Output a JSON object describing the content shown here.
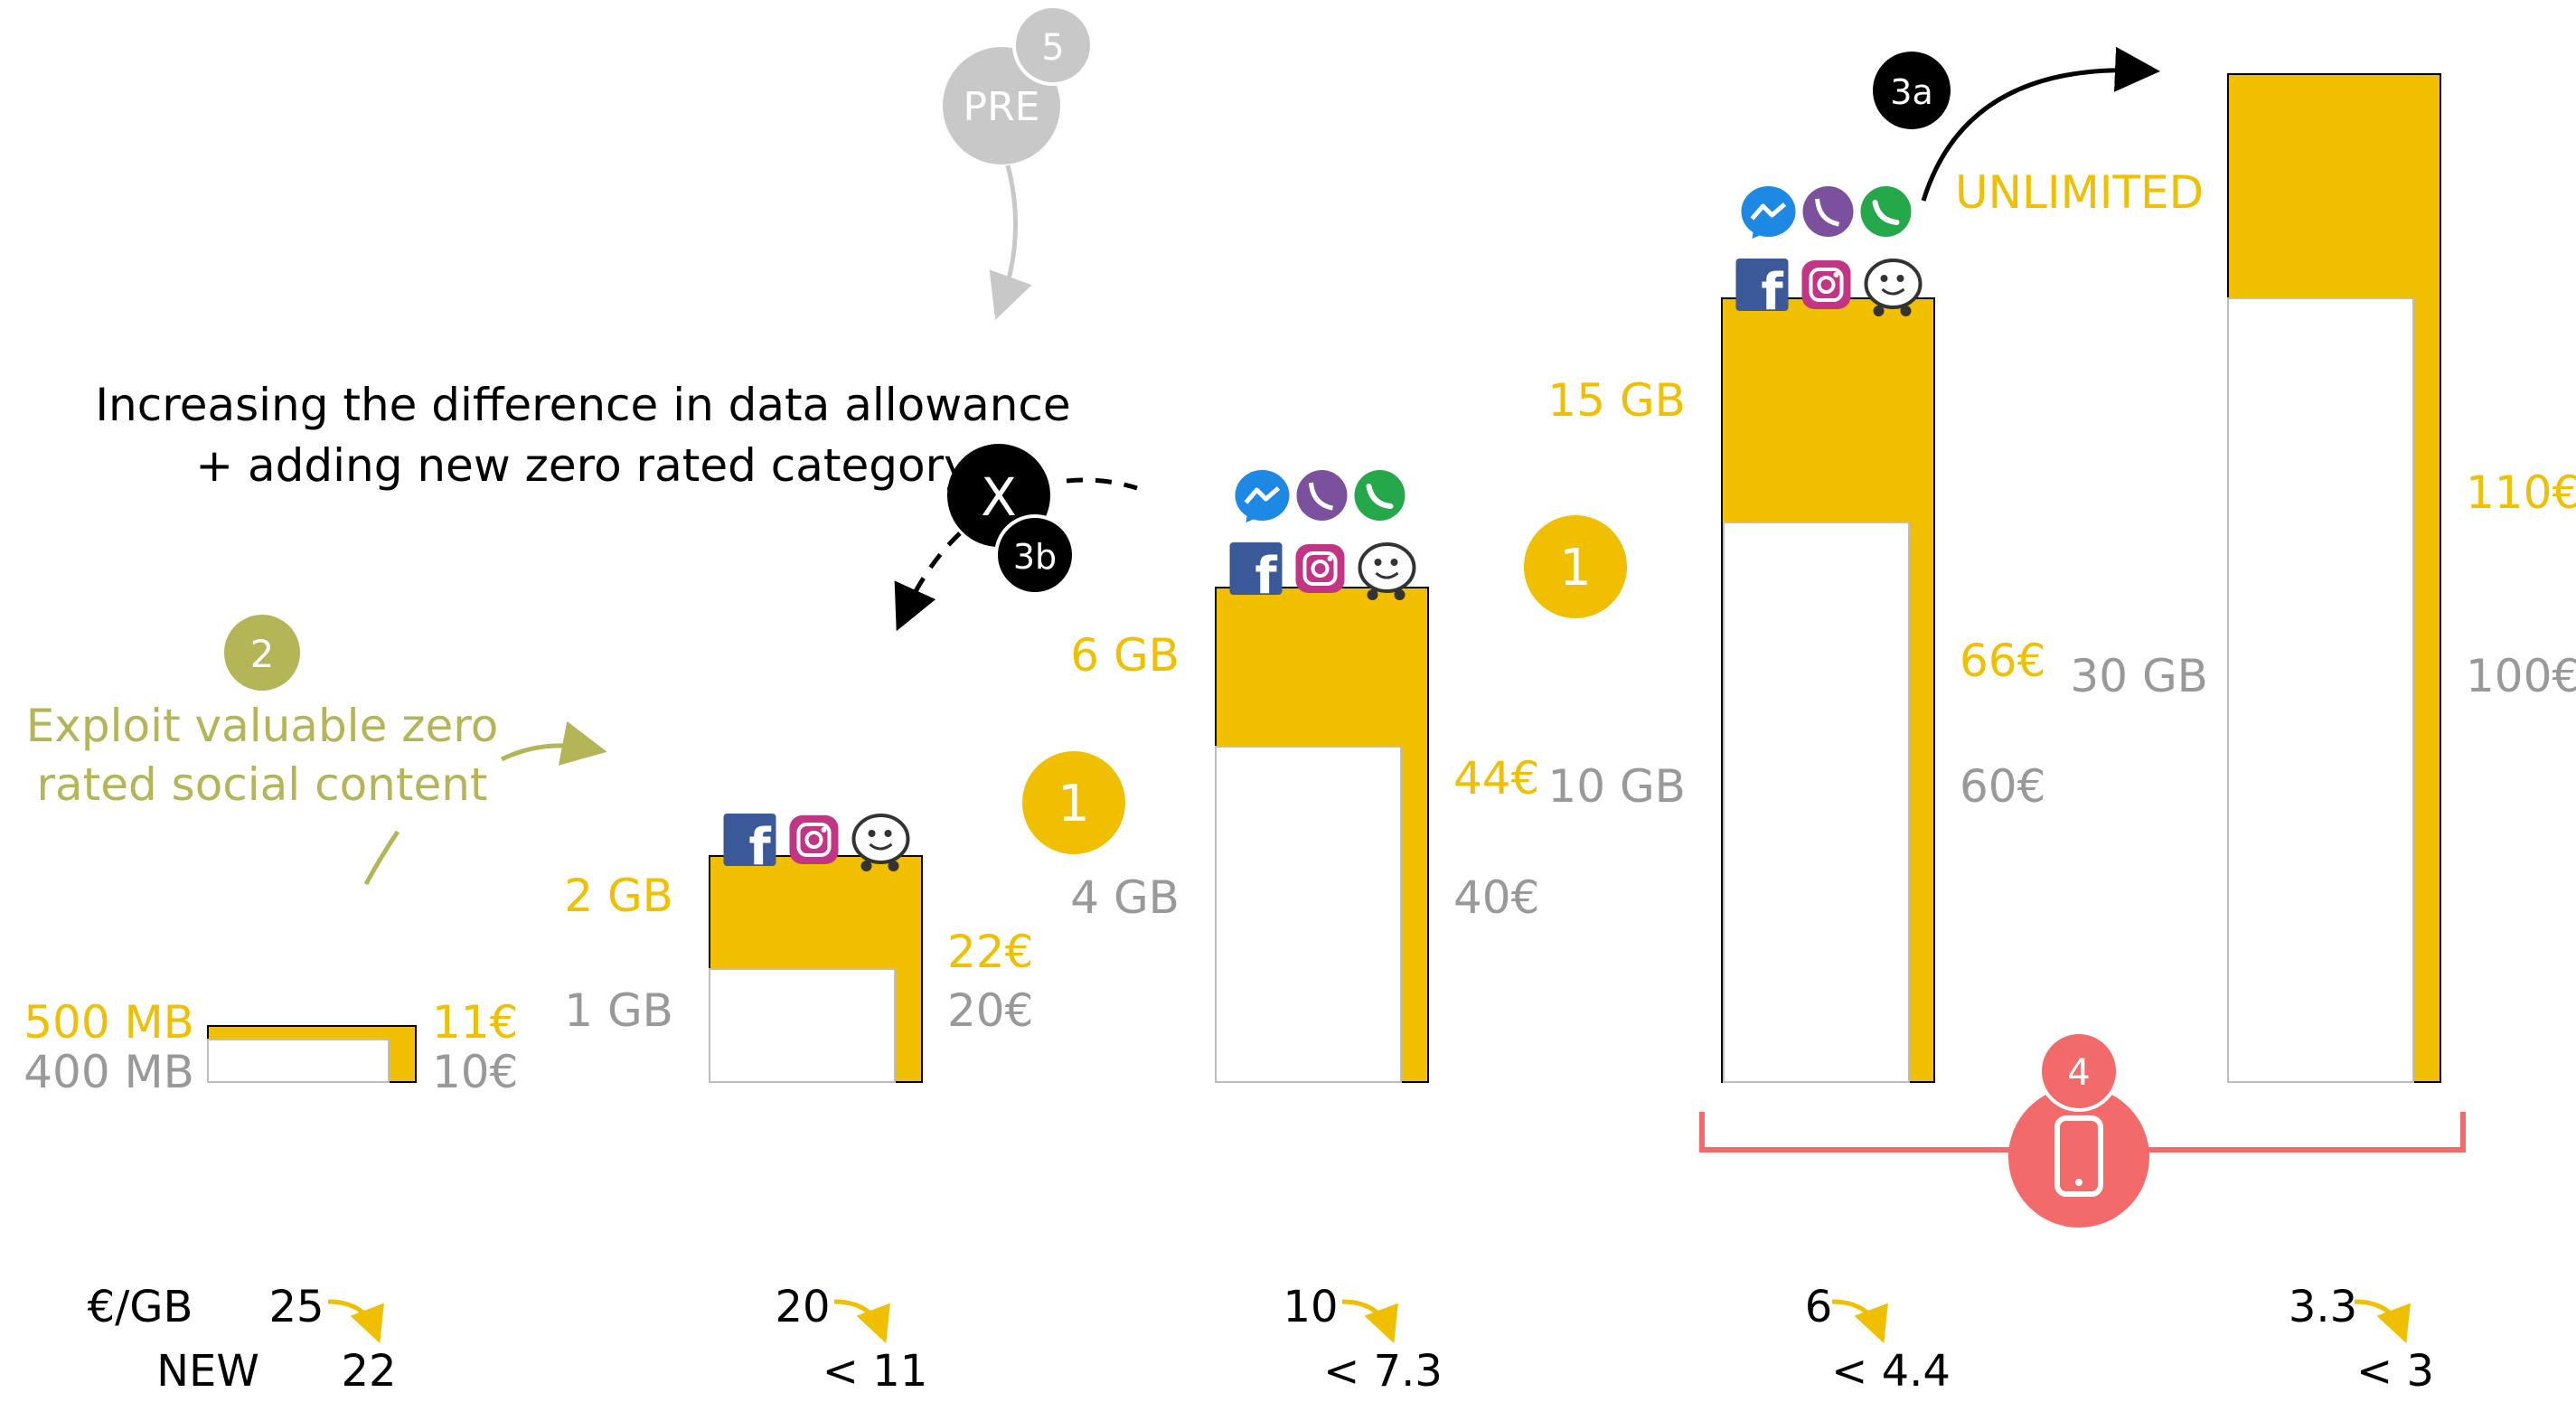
{
  "colors": {
    "yellow": "#EFBF00",
    "gray": "#999999",
    "olive": "#B3B556",
    "red": "#F26A6A",
    "black": "#000000",
    "light_gray": "#C8C8C8",
    "facebook": "#3B5998",
    "messenger": "#1E88E5",
    "viber": "#7B519D",
    "whatsapp": "#25A84A",
    "instagram": "#C13584"
  },
  "headline": {
    "line1": "Increasing the difference in data allowance",
    "line2": "+ adding new zero rated category"
  },
  "exploit_note": {
    "line1": "Exploit valuable zero",
    "line2": "rated social content"
  },
  "markers": {
    "step_2": "2",
    "step_1a": "1",
    "step_1b": "1",
    "step_3a": "3a",
    "step_3b": "3b",
    "x_mark": "X",
    "pre": "PRE",
    "step_5": "5",
    "step_4": "4"
  },
  "unlimited_label": "UNLIMITED",
  "icons": {
    "social_set": [
      "facebook-icon",
      "instagram-icon",
      "waze-icon"
    ],
    "messaging_set": [
      "messenger-icon",
      "viber-icon",
      "whatsapp-icon"
    ],
    "device": "smartphone-icon"
  },
  "plans": [
    {
      "old_data": "400 MB",
      "new_data": "500 MB",
      "old_price": "10€",
      "new_price": "11€",
      "old_eur_per_gb": "25",
      "new_eur_per_gb": "22",
      "old_price_value": 10,
      "new_price_value": 11,
      "zero_rated": []
    },
    {
      "old_data": "1 GB",
      "new_data": "2 GB",
      "old_price": "20€",
      "new_price": "22€",
      "old_eur_per_gb": "20",
      "new_eur_per_gb": "< 11",
      "old_price_value": 20,
      "new_price_value": 22,
      "zero_rated": [
        "social"
      ]
    },
    {
      "old_data": "4 GB",
      "new_data": "6 GB",
      "old_price": "40€",
      "new_price": "44€",
      "old_eur_per_gb": "10",
      "new_eur_per_gb": "< 7.3",
      "old_price_value": 40,
      "new_price_value": 44,
      "zero_rated": [
        "social",
        "messaging"
      ]
    },
    {
      "old_data": "10 GB",
      "new_data": "15 GB",
      "old_price": "60€",
      "new_price": "66€",
      "old_eur_per_gb": "6",
      "new_eur_per_gb": "< 4.4",
      "old_price_value": 60,
      "new_price_value": 66,
      "zero_rated": [
        "social",
        "messaging"
      ]
    },
    {
      "old_data": "30 GB",
      "new_data": "",
      "old_price": "100€",
      "new_price": "110€",
      "old_eur_per_gb": "3.3",
      "new_eur_per_gb": "< 3",
      "old_price_value": 100,
      "new_price_value": 110,
      "zero_rated": []
    }
  ],
  "row_labels": {
    "eur_per_gb": "€/GB",
    "new": "NEW"
  }
}
